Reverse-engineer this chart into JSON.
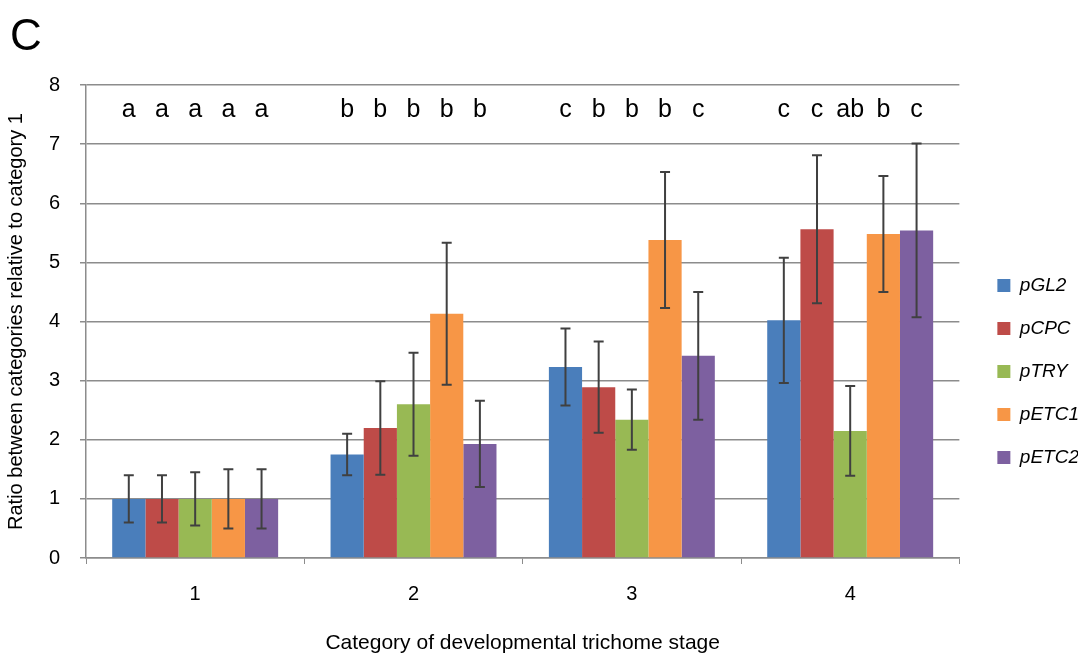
{
  "chart_data": {
    "type": "bar",
    "title": "C",
    "xlabel": "Category of developmental trichome stage",
    "ylabel": "Ratio between categories relative to category 1",
    "categories": [
      "1",
      "2",
      "3",
      "4"
    ],
    "series": [
      {
        "name": "pGL2",
        "color": "#4a7ebb",
        "values": [
          1,
          1.75,
          3.23,
          4.02
        ],
        "errors": [
          0.4,
          0.35,
          0.65,
          1.06
        ]
      },
      {
        "name": "pCPC",
        "color": "#be4b48",
        "values": [
          1,
          2.2,
          2.89,
          5.56
        ],
        "errors": [
          0.4,
          0.79,
          0.77,
          1.25
        ]
      },
      {
        "name": "pTRY",
        "color": "#98b954",
        "values": [
          1,
          2.6,
          2.34,
          2.15
        ],
        "errors": [
          0.45,
          0.87,
          0.51,
          0.76
        ]
      },
      {
        "name": "pETC1",
        "color": "#f79646",
        "values": [
          1,
          4.13,
          5.38,
          5.48
        ],
        "errors": [
          0.5,
          1.2,
          1.15,
          0.98
        ]
      },
      {
        "name": "pETC2",
        "color": "#7d60a0",
        "values": [
          1,
          1.93,
          3.42,
          5.54
        ],
        "errors": [
          0.5,
          0.73,
          1.08,
          1.47
        ]
      }
    ],
    "annotations": [
      "a",
      "a",
      "a",
      "a",
      "a",
      "b",
      "b",
      "b",
      "b",
      "b",
      "c",
      "b",
      "b",
      "b",
      "c",
      "c",
      "c",
      "ab",
      "b",
      "c"
    ],
    "ylim": [
      0,
      8
    ],
    "yticks": [
      0,
      1,
      2,
      3,
      4,
      5,
      6,
      7,
      8
    ],
    "grid": "y",
    "legend": "right"
  }
}
